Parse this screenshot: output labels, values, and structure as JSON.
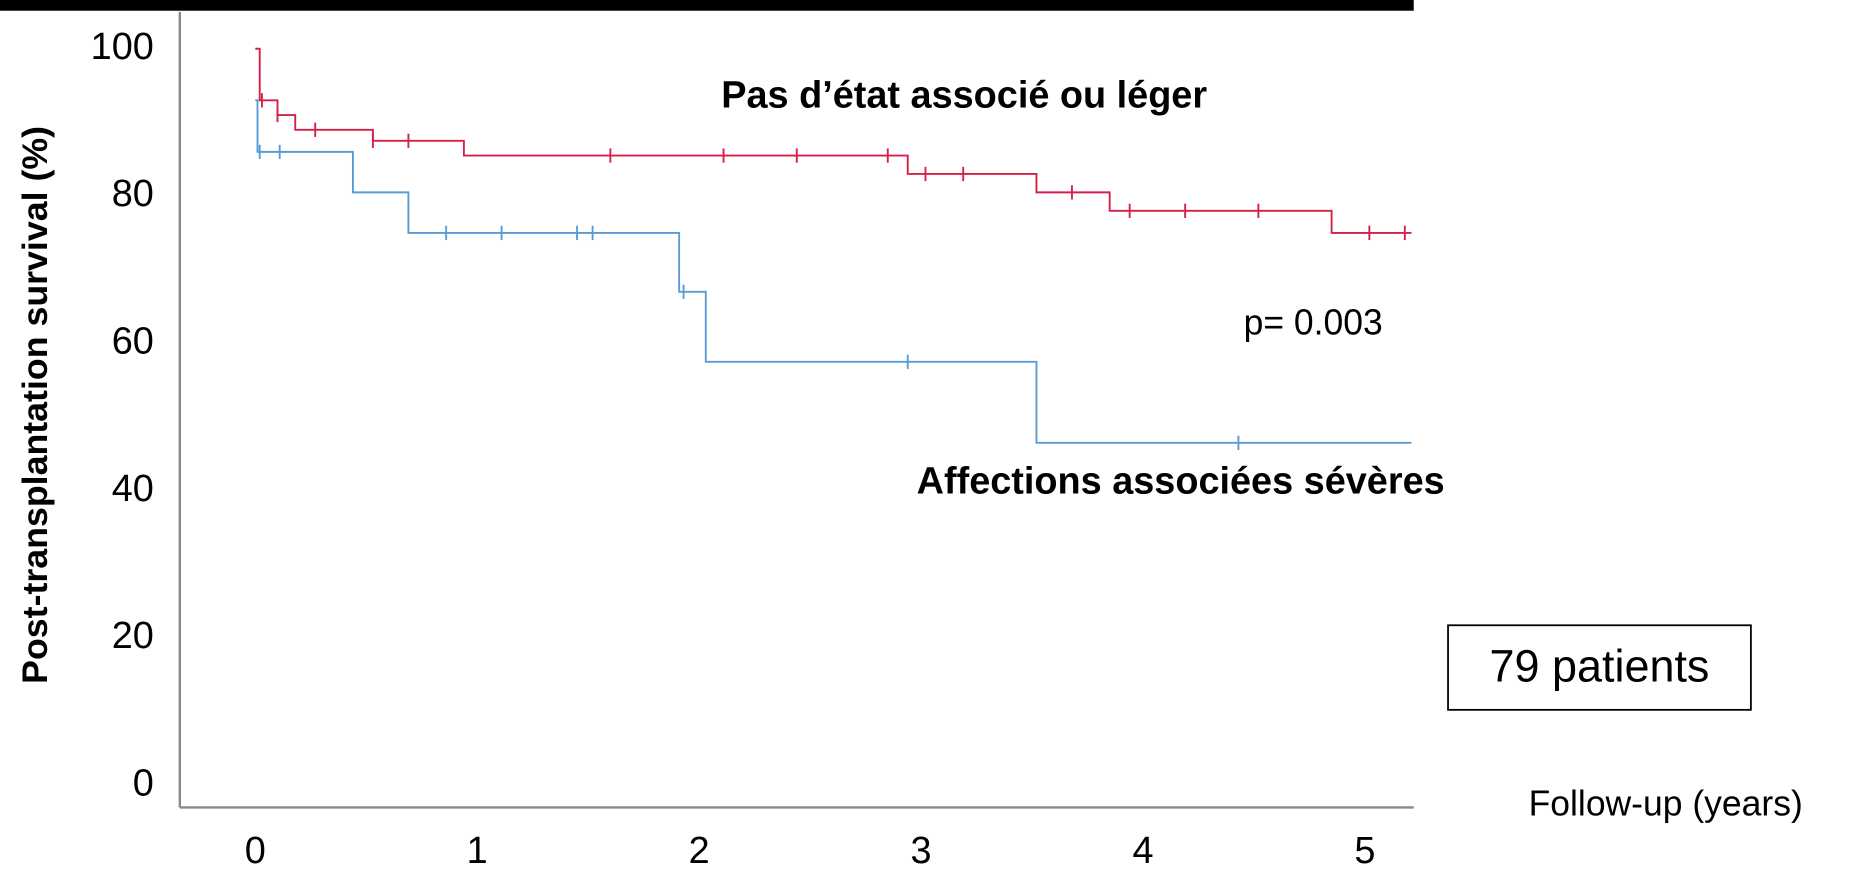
{
  "chart_data": {
    "type": "step",
    "xlabel": "Follow-up (years)",
    "ylabel": "Post-transplantation survival (%)",
    "annotations": [
      "p= 0.003",
      "79 patients"
    ],
    "xlim": [
      -0.34,
      5.22
    ],
    "xticks": [
      0,
      1,
      2,
      3,
      4,
      5
    ],
    "ylim": [
      -3,
      105
    ],
    "yticks": [
      0,
      20,
      40,
      60,
      80,
      100
    ],
    "grid": false,
    "series": [
      {
        "name": "Pas d’état associé ou léger",
        "color": "#d6204c",
        "x": [
          0,
          0.02,
          0.1,
          0.18,
          0.53,
          0.94,
          2.94,
          3.52,
          3.85,
          4.85,
          5.21
        ],
        "values": [
          100,
          93,
          91,
          89,
          87.5,
          85.5,
          83,
          80.5,
          78,
          75,
          75
        ],
        "censor_x": [
          0.03,
          0.1,
          0.27,
          0.53,
          0.69,
          1.6,
          2.11,
          2.44,
          2.85,
          3.02,
          3.19,
          3.68,
          3.94,
          4.19,
          4.52,
          5.02,
          5.18
        ]
      },
      {
        "name": "Affections associées sévères",
        "color": "#5b9bd5",
        "x": [
          0,
          0.01,
          0.44,
          0.69,
          1.91,
          2.03,
          3.52,
          5.21
        ],
        "values": [
          93,
          86,
          80.5,
          75,
          67,
          57.5,
          46.5,
          46.5
        ],
        "censor_x": [
          0.02,
          0.11,
          0.86,
          1.11,
          1.45,
          1.52,
          1.93,
          2.94,
          4.43
        ]
      }
    ]
  }
}
